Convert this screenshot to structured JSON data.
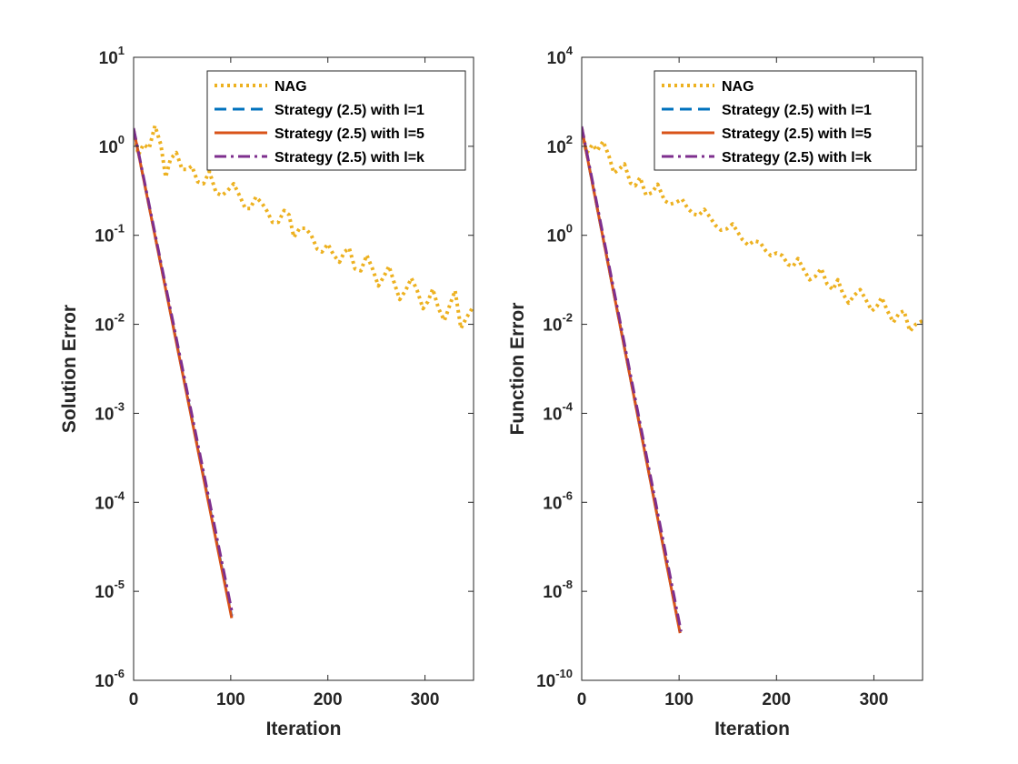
{
  "chart_data": [
    {
      "type": "line",
      "title": "",
      "xlabel": "Iteration",
      "ylabel": "Solution Error",
      "yscale": "log",
      "xlim": [
        0,
        350
      ],
      "ylim_exp": [
        -6,
        1
      ],
      "xticks": [
        0,
        100,
        200,
        300
      ],
      "yticks": [
        {
          "base": "10",
          "exp": "1",
          "v": 1
        },
        {
          "base": "10",
          "exp": "0",
          "v": 0
        },
        {
          "base": "10",
          "exp": "-1",
          "v": -1
        },
        {
          "base": "10",
          "exp": "-2",
          "v": -2
        },
        {
          "base": "10",
          "exp": "-3",
          "v": -3
        },
        {
          "base": "10",
          "exp": "-4",
          "v": -4
        },
        {
          "base": "10",
          "exp": "-5",
          "v": -5
        },
        {
          "base": "10",
          "exp": "-6",
          "v": -6
        }
      ],
      "grid": false,
      "legend_position": "top-right",
      "series": [
        {
          "name": "NAG",
          "color": "#EDB120",
          "style": "dotted",
          "x": [
            0,
            5,
            10,
            16,
            22,
            28,
            33,
            38,
            44,
            50,
            55,
            60,
            66,
            72,
            78,
            85,
            91,
            97,
            103,
            109,
            115,
            120,
            126,
            132,
            137,
            143,
            149,
            155,
            160,
            165,
            171,
            177,
            183,
            189,
            194,
            200,
            206,
            212,
            217,
            222,
            228,
            234,
            240,
            246,
            252,
            258,
            263,
            268,
            274,
            280,
            286,
            292,
            298,
            303,
            308,
            314,
            320,
            326,
            331,
            337,
            343,
            350
          ],
          "y": [
            1.5,
            0.8,
            1.05,
            0.95,
            1.7,
            1.05,
            0.45,
            0.72,
            0.85,
            0.55,
            0.55,
            0.6,
            0.4,
            0.38,
            0.52,
            0.3,
            0.28,
            0.32,
            0.38,
            0.28,
            0.2,
            0.2,
            0.27,
            0.23,
            0.19,
            0.14,
            0.14,
            0.19,
            0.17,
            0.095,
            0.12,
            0.12,
            0.1,
            0.07,
            0.065,
            0.08,
            0.06,
            0.05,
            0.065,
            0.072,
            0.042,
            0.04,
            0.06,
            0.042,
            0.027,
            0.035,
            0.045,
            0.03,
            0.019,
            0.024,
            0.033,
            0.024,
            0.015,
            0.018,
            0.025,
            0.015,
            0.011,
            0.017,
            0.024,
            0.009,
            0.012,
            0.016
          ]
        },
        {
          "name": "Strategy (2.5) with l=1",
          "color": "#0072BD",
          "style": "dashed",
          "x": [
            0,
            101
          ],
          "y": [
            1.55,
            5.2e-06
          ]
        },
        {
          "name": "Strategy (2.5) with l=5",
          "color": "#D95319",
          "style": "solid",
          "x": [
            0,
            101
          ],
          "y": [
            1.55,
            5e-06
          ]
        },
        {
          "name": "Strategy (2.5) with l=k",
          "color": "#7E2F8E",
          "style": "dashdot",
          "x": [
            0,
            102
          ],
          "y": [
            1.6,
            5.4e-06
          ]
        }
      ]
    },
    {
      "type": "line",
      "title": "",
      "xlabel": "Iteration",
      "ylabel": "Function Error",
      "yscale": "log",
      "xlim": [
        0,
        350
      ],
      "ylim_exp": [
        -10,
        4
      ],
      "xticks": [
        0,
        100,
        200,
        300
      ],
      "yticks": [
        {
          "base": "10",
          "exp": "4",
          "v": 4
        },
        {
          "base": "10",
          "exp": "2",
          "v": 2
        },
        {
          "base": "10",
          "exp": "0",
          "v": 0
        },
        {
          "base": "10",
          "exp": "-2",
          "v": -2
        },
        {
          "base": "10",
          "exp": "-4",
          "v": -4
        },
        {
          "base": "10",
          "exp": "-6",
          "v": -6
        },
        {
          "base": "10",
          "exp": "-8",
          "v": -8
        },
        {
          "base": "10",
          "exp": "-10",
          "v": -10
        }
      ],
      "grid": false,
      "legend_position": "top-right",
      "series": [
        {
          "name": "NAG",
          "color": "#EDB120",
          "style": "dotted",
          "x": [
            0,
            5,
            11,
            16,
            22,
            28,
            33,
            38,
            44,
            50,
            55,
            60,
            66,
            72,
            78,
            85,
            91,
            97,
            103,
            109,
            115,
            120,
            126,
            132,
            137,
            143,
            149,
            155,
            160,
            165,
            171,
            177,
            183,
            189,
            194,
            200,
            206,
            212,
            217,
            222,
            228,
            234,
            240,
            246,
            252,
            258,
            263,
            268,
            274,
            280,
            286,
            292,
            298,
            303,
            308,
            314,
            320,
            326,
            331,
            337,
            343,
            350
          ],
          "y": [
            250,
            70,
            110,
            80,
            130,
            60,
            25,
            30,
            40,
            15,
            13,
            20,
            8,
            9,
            14,
            6,
            5,
            5.5,
            6.5,
            4,
            3,
            2.8,
            3.8,
            2.5,
            1.7,
            1.3,
            1.4,
            1.8,
            1.2,
            0.8,
            0.6,
            0.75,
            0.7,
            0.45,
            0.35,
            0.4,
            0.35,
            0.22,
            0.2,
            0.3,
            0.17,
            0.1,
            0.12,
            0.18,
            0.08,
            0.06,
            0.1,
            0.05,
            0.03,
            0.045,
            0.06,
            0.035,
            0.02,
            0.025,
            0.04,
            0.02,
            0.011,
            0.018,
            0.02,
            0.007,
            0.01,
            0.012
          ]
        },
        {
          "name": "Strategy (2.5) with l=1",
          "color": "#0072BD",
          "style": "dashed",
          "x": [
            0,
            101
          ],
          "y": [
            250,
            1.2e-09
          ]
        },
        {
          "name": "Strategy (2.5) with l=5",
          "color": "#D95319",
          "style": "solid",
          "x": [
            0,
            101
          ],
          "y": [
            250,
            1.15e-09
          ]
        },
        {
          "name": "Strategy (2.5) with l=k",
          "color": "#7E2F8E",
          "style": "dashdot",
          "x": [
            0,
            102
          ],
          "y": [
            280,
            1.25e-09
          ]
        }
      ]
    }
  ]
}
